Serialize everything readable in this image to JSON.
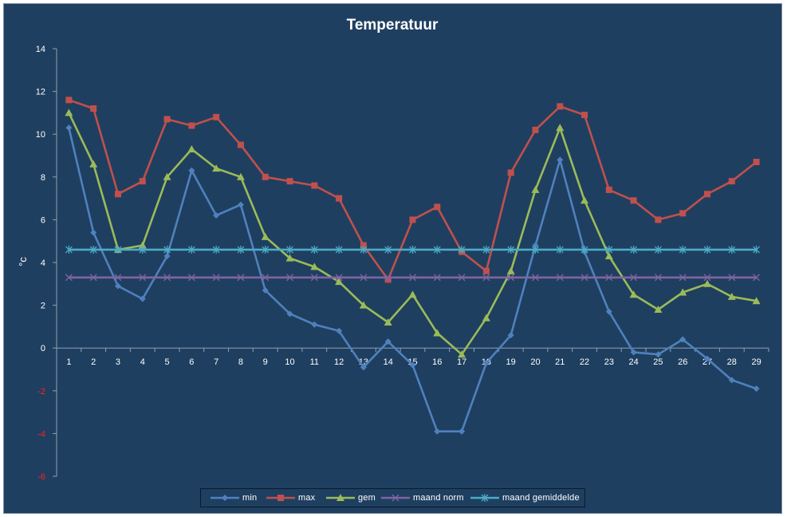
{
  "chart_data": {
    "type": "line",
    "title": "Temperatuur",
    "xlabel": "",
    "ylabel": "°c",
    "x": [
      1,
      2,
      3,
      4,
      5,
      6,
      7,
      8,
      9,
      10,
      11,
      12,
      13,
      14,
      15,
      16,
      17,
      18,
      19,
      20,
      21,
      22,
      23,
      24,
      25,
      26,
      27,
      28,
      29
    ],
    "ylim": [
      -6,
      14
    ],
    "yticks": [
      14,
      12,
      10,
      8,
      6,
      4,
      2,
      0,
      -2,
      -4,
      -6
    ],
    "grid": false,
    "legend_position": "bottom",
    "colors": {
      "background": "#1f3f60",
      "axis": "#8fa0b4",
      "text": "#ffffff",
      "negative_tick": "#ff2020"
    },
    "series": [
      {
        "name": "min",
        "color": "#4f81bd",
        "marker": "diamond",
        "values": [
          10.3,
          5.4,
          2.9,
          2.3,
          4.3,
          8.3,
          6.2,
          6.7,
          2.7,
          1.6,
          1.1,
          0.8,
          -0.9,
          0.3,
          -0.8,
          -3.9,
          -3.9,
          -0.7,
          0.6,
          4.8,
          8.8,
          4.5,
          1.7,
          -0.2,
          -0.3,
          0.4,
          -0.5,
          -1.5,
          -1.9
        ]
      },
      {
        "name": "max",
        "color": "#c0504d",
        "marker": "square",
        "values": [
          11.6,
          11.2,
          7.2,
          7.8,
          10.7,
          10.4,
          10.8,
          9.5,
          8.0,
          7.8,
          7.6,
          7.0,
          4.8,
          3.2,
          6.0,
          6.6,
          4.5,
          3.6,
          8.2,
          10.2,
          11.3,
          10.9,
          7.4,
          6.9,
          6.0,
          6.3,
          7.2,
          7.8,
          8.7
        ]
      },
      {
        "name": "gem",
        "color": "#9bbb59",
        "marker": "triangle",
        "values": [
          11.0,
          8.6,
          4.6,
          4.8,
          8.0,
          9.3,
          8.4,
          8.0,
          5.2,
          4.2,
          3.8,
          3.1,
          2.0,
          1.2,
          2.5,
          0.7,
          -0.3,
          1.4,
          3.6,
          7.4,
          10.3,
          6.9,
          4.3,
          2.5,
          1.8,
          2.6,
          3.0,
          2.4,
          2.2
        ]
      },
      {
        "name": "maand norm",
        "color": "#8064a2",
        "marker": "x",
        "values": [
          3.3,
          3.3,
          3.3,
          3.3,
          3.3,
          3.3,
          3.3,
          3.3,
          3.3,
          3.3,
          3.3,
          3.3,
          3.3,
          3.3,
          3.3,
          3.3,
          3.3,
          3.3,
          3.3,
          3.3,
          3.3,
          3.3,
          3.3,
          3.3,
          3.3,
          3.3,
          3.3,
          3.3,
          3.3
        ]
      },
      {
        "name": "maand gemiddelde",
        "color": "#4bacc6",
        "marker": "asterisk",
        "values": [
          4.6,
          4.6,
          4.6,
          4.6,
          4.6,
          4.6,
          4.6,
          4.6,
          4.6,
          4.6,
          4.6,
          4.6,
          4.6,
          4.6,
          4.6,
          4.6,
          4.6,
          4.6,
          4.6,
          4.6,
          4.6,
          4.6,
          4.6,
          4.6,
          4.6,
          4.6,
          4.6,
          4.6,
          4.6
        ]
      }
    ]
  }
}
